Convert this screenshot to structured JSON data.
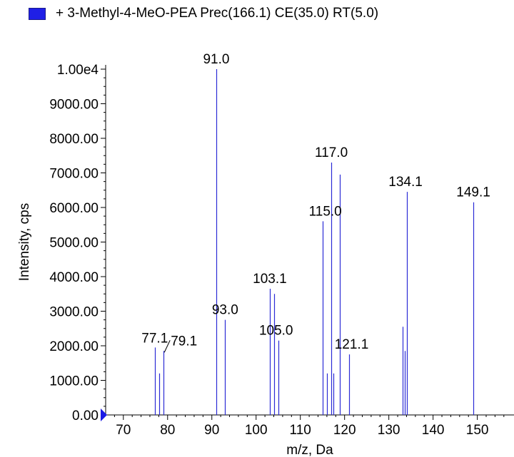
{
  "legend": {
    "text": "+ 3-Methyl-4-MeO-PEA Prec(166.1) CE(35.0) RT(5.0)",
    "color": "#1f1fe6"
  },
  "chart_data": {
    "type": "bar",
    "title": "+ 3-Methyl-4-MeO-PEA Prec(166.1) CE(35.0) RT(5.0)",
    "xlabel": "m/z, Da",
    "ylabel": "Intensity, cps",
    "xlim": [
      66,
      157
    ],
    "ylim": [
      0,
      10000
    ],
    "x_ticks": [
      70,
      80,
      90,
      100,
      110,
      120,
      130,
      140,
      150
    ],
    "x_tick_labels": [
      "70",
      "80",
      "90",
      "100",
      "110",
      "120",
      "130",
      "140",
      "150"
    ],
    "y_ticks": [
      0,
      1000,
      2000,
      3000,
      4000,
      5000,
      6000,
      7000,
      8000,
      9000,
      10000
    ],
    "y_tick_labels": [
      "0.00",
      "1000.00",
      "2000.00",
      "3000.00",
      "4000.00",
      "5000.00",
      "6000.00",
      "7000.00",
      "8000.00",
      "9000.00",
      "1.00e4"
    ],
    "bar_color": "#2b2bd6",
    "peaks": [
      {
        "x": 77.1,
        "y": 1950
      },
      {
        "x": 78.1,
        "y": 1200
      },
      {
        "x": 79.1,
        "y": 1850
      },
      {
        "x": 91.0,
        "y": 10000
      },
      {
        "x": 93.0,
        "y": 2750
      },
      {
        "x": 103.1,
        "y": 3650
      },
      {
        "x": 104.0,
        "y": 3500
      },
      {
        "x": 105.0,
        "y": 2150
      },
      {
        "x": 115.0,
        "y": 5600
      },
      {
        "x": 116.0,
        "y": 1200
      },
      {
        "x": 117.0,
        "y": 7300
      },
      {
        "x": 117.5,
        "y": 1200
      },
      {
        "x": 119.0,
        "y": 6950
      },
      {
        "x": 121.1,
        "y": 1750
      },
      {
        "x": 133.2,
        "y": 2550
      },
      {
        "x": 133.6,
        "y": 1850
      },
      {
        "x": 134.1,
        "y": 6450
      },
      {
        "x": 149.1,
        "y": 6150
      }
    ],
    "annotations": [
      {
        "text": "91.0",
        "x": 91.0,
        "y": 10000
      },
      {
        "text": "117.0",
        "x": 117.0,
        "y": 7300
      },
      {
        "text": "134.1",
        "x": 134.1,
        "y": 6450
      },
      {
        "text": "149.1",
        "x": 149.1,
        "y": 6150
      },
      {
        "text": "115.0",
        "x": 115.0,
        "y": 5600
      },
      {
        "text": "103.1",
        "x": 103.1,
        "y": 3650
      },
      {
        "text": "93.0",
        "x": 93.0,
        "y": 2750
      },
      {
        "text": "105.0",
        "x": 105.0,
        "y": 2150
      },
      {
        "text": "121.1",
        "x": 121.1,
        "y": 1750
      },
      {
        "text": "77.1",
        "x": 77.1,
        "y": 1950
      },
      {
        "text": "79.1",
        "x": 79.1,
        "y": 1850
      }
    ]
  }
}
